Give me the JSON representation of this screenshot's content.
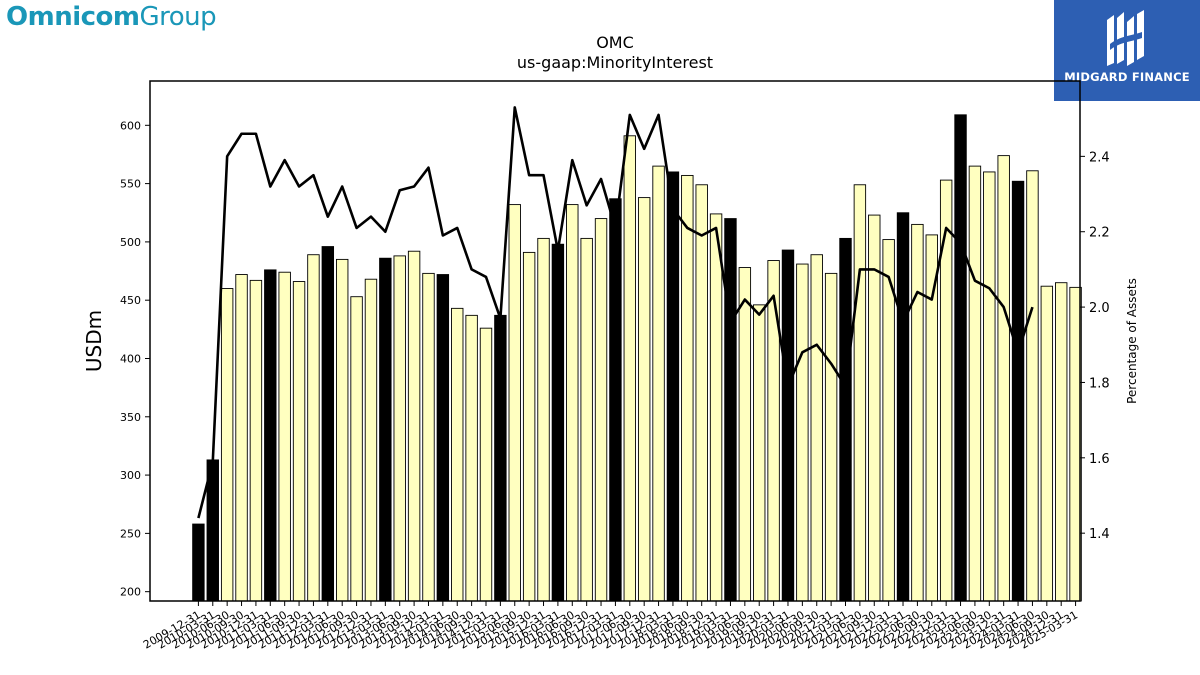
{
  "brand": {
    "part1": "Omnicom",
    "part2": "Group"
  },
  "watermark": {
    "text": "MIDGARD FINANCE"
  },
  "chart_data": {
    "type": "bar",
    "title": "OMC",
    "subtitle": "us-gaap:MinorityInterest",
    "ylabel": "USDm",
    "y2label": "Percentage of Assets",
    "ylim": [
      192,
      638
    ],
    "y2lim": [
      1.22,
      2.6
    ],
    "yticks": [
      200,
      250,
      300,
      350,
      400,
      450,
      500,
      550,
      600
    ],
    "y2ticks": [
      1.4,
      1.6,
      1.8,
      2.0,
      2.2,
      2.4
    ],
    "colors": {
      "annual": "#000000",
      "quarter": "#ffffc0",
      "edge": "#000000",
      "line": "#000000"
    },
    "categories": [
      "2009-12-31",
      "2010-03-31",
      "2010-06-30",
      "2010-09-30",
      "2010-12-31",
      "2011-03-31",
      "2011-06-30",
      "2011-09-30",
      "2011-12-31",
      "2012-03-31",
      "2012-06-30",
      "2012-09-30",
      "2012-12-31",
      "2013-03-31",
      "2013-06-30",
      "2013-09-30",
      "2013-12-31",
      "2014-03-31",
      "2014-06-30",
      "2014-09-30",
      "2014-12-31",
      "2015-03-31",
      "2015-06-30",
      "2015-09-30",
      "2015-12-31",
      "2016-03-31",
      "2016-06-30",
      "2016-09-30",
      "2016-12-31",
      "2017-03-31",
      "2017-06-30",
      "2017-09-30",
      "2017-12-31",
      "2018-03-31",
      "2018-06-30",
      "2018-09-30",
      "2018-12-31",
      "2019-03-31",
      "2019-06-30",
      "2019-09-30",
      "2019-12-31",
      "2020-03-31",
      "2020-06-30",
      "2020-09-30",
      "2020-12-31",
      "2021-03-31",
      "2021-06-30",
      "2021-09-30",
      "2021-12-31",
      "2022-03-31",
      "2022-06-30",
      "2022-09-30",
      "2022-12-31",
      "2023-03-31",
      "2023-06-30",
      "2023-09-30",
      "2023-12-31",
      "2024-03-31",
      "2024-06-30",
      "2024-09-30",
      "2024-12-31",
      "2025-03-31"
    ],
    "series": [
      {
        "kind": "bar",
        "values": [
          258,
          313,
          460,
          472,
          467,
          476,
          474,
          466,
          489,
          496,
          485,
          453,
          468,
          486,
          488,
          492,
          473,
          472,
          443,
          437,
          426,
          437,
          532,
          491,
          503,
          498,
          532,
          503,
          520,
          537,
          591,
          538,
          565,
          560,
          557,
          549,
          524,
          520,
          478,
          446,
          484,
          493,
          481,
          489,
          473,
          503,
          549,
          523,
          502,
          525,
          515,
          506,
          553,
          609,
          565,
          560,
          574,
          552,
          561,
          462,
          465,
          461
        ],
        "annual": [
          true,
          true,
          false,
          false,
          false,
          true,
          false,
          false,
          false,
          true,
          false,
          false,
          false,
          true,
          false,
          false,
          false,
          true,
          false,
          false,
          false,
          true,
          false,
          false,
          false,
          true,
          false,
          false,
          false,
          true,
          false,
          false,
          false,
          true,
          false,
          false,
          false,
          true,
          false,
          false,
          false,
          true,
          false,
          false,
          false,
          true,
          false,
          false,
          false,
          true,
          false,
          false,
          false,
          true,
          false,
          false,
          false,
          true,
          false,
          false,
          false,
          false
        ]
      },
      {
        "kind": "line",
        "axis": "right",
        "values": [
          1.44,
          1.59,
          2.4,
          2.46,
          2.46,
          2.32,
          2.39,
          2.32,
          2.35,
          2.24,
          2.32,
          2.21,
          2.24,
          2.2,
          2.31,
          2.32,
          2.37,
          2.19,
          2.21,
          2.1,
          2.08,
          1.97,
          2.53,
          2.35,
          2.35,
          2.15,
          2.39,
          2.27,
          2.34,
          2.21,
          2.51,
          2.42,
          2.51,
          2.26,
          2.21,
          2.19,
          2.21,
          1.96,
          2.02,
          1.98,
          2.03,
          1.79,
          1.88,
          1.9,
          1.85,
          1.79,
          2.1,
          2.1,
          2.08,
          1.96,
          2.04,
          2.02,
          2.21,
          2.17,
          2.07,
          2.05,
          2.0,
          1.88,
          2.0,
          null,
          null,
          null
        ]
      }
    ],
    "grid": false,
    "legend": "none"
  }
}
